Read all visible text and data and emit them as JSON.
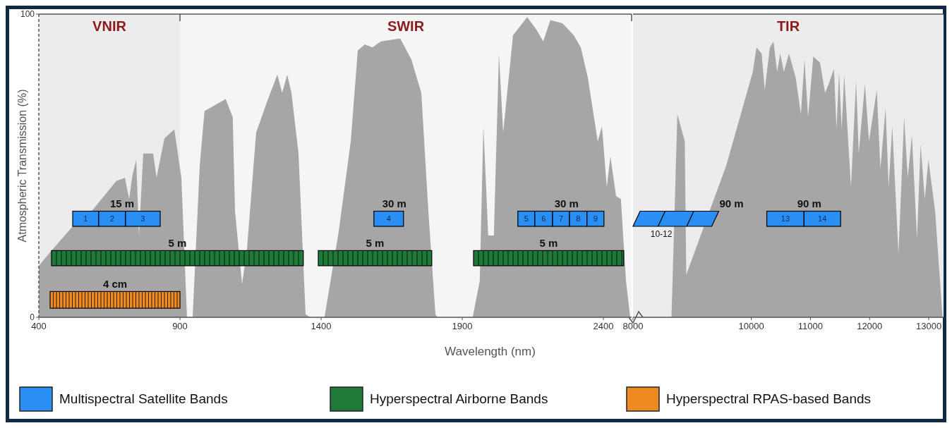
{
  "chart_data": [
    {
      "type": "area",
      "ylabel": "Atmospheric Transmission (%)",
      "xlabel": "Wavelength (nm)",
      "legend": "bottom",
      "x": [
        400,
        445,
        520,
        587,
        675,
        705,
        720,
        732,
        745,
        755,
        770,
        805,
        817,
        845,
        880,
        905,
        925,
        945,
        970,
        987,
        1062,
        1087,
        1095,
        1120,
        1137,
        1170,
        1212,
        1245,
        1262,
        1280,
        1295,
        1320,
        1345,
        1362,
        1412,
        1445,
        1462,
        1505,
        1530,
        1555,
        1582,
        1612,
        1680,
        1720,
        1755,
        1780,
        1805,
        1812,
        1937,
        1962,
        1975,
        1992,
        2012,
        2030,
        2045,
        2080,
        2130,
        2162,
        2187,
        2212,
        2255,
        2295,
        2320,
        2345,
        2380,
        2395,
        2412,
        2425,
        2445,
        2462,
        2480,
        2495
      ],
      "series": [
        {
          "color": "#a6a6a6",
          "values": [
            17,
            22,
            30,
            35,
            45,
            46,
            39,
            47,
            52,
            27,
            54,
            54,
            46,
            59,
            62,
            46,
            0,
            0,
            50,
            68,
            72,
            66,
            35,
            11,
            22,
            61,
            72,
            80,
            74,
            80,
            74,
            54,
            1,
            0,
            0,
            null,
            28,
            58,
            88,
            90,
            89,
            91,
            92,
            85,
            74,
            35,
            1,
            0,
            0,
            12,
            63,
            27,
            27,
            87,
            61,
            93,
            99,
            95,
            91,
            98,
            97,
            93,
            89,
            79,
            58,
            63,
            43,
            53,
            40,
            39,
            12,
            0
          ]
        },
        {
          "name": "Multispectral Satellite Bands",
          "color": "#2a8ef2",
          "values": [
            null,
            null,
            null,
            null,
            null,
            null,
            null,
            null,
            null,
            null,
            null,
            null,
            null,
            null,
            null,
            null,
            null,
            null,
            null,
            null,
            null,
            null,
            null,
            null,
            null,
            null,
            null,
            null,
            null,
            null,
            null,
            null,
            null,
            null,
            null,
            null,
            null,
            null,
            null,
            null,
            null,
            null,
            null,
            null,
            null,
            null,
            null,
            null,
            null,
            null,
            null,
            null,
            null,
            null,
            null,
            null,
            null,
            null,
            null,
            null,
            null,
            null,
            null,
            null,
            null,
            null,
            null,
            null,
            null,
            null,
            null,
            null
          ]
        },
        {
          "name": "Hyperspectral Airborne Bands",
          "color": "#1f7a3a",
          "values": [
            null,
            null,
            null,
            null,
            null,
            null,
            null,
            null,
            null,
            null,
            null,
            null,
            null,
            null,
            null,
            null,
            null,
            null,
            null,
            null,
            null,
            null,
            null,
            null,
            null,
            null,
            null,
            null,
            null,
            null,
            null,
            null,
            null,
            null,
            null,
            null,
            null,
            null,
            null,
            null,
            null,
            null,
            null,
            null,
            null,
            null,
            null,
            null,
            null,
            null,
            null,
            null,
            null,
            null,
            null,
            null,
            null,
            null,
            null,
            null,
            null,
            null,
            null,
            null,
            null,
            null,
            null,
            null,
            null,
            null,
            null,
            null
          ]
        },
        {
          "name": "Hyperspectral RPAS-based Bands",
          "color": "#ee8a22",
          "values": [
            null,
            null,
            null,
            null,
            null,
            null,
            null,
            null,
            null,
            null,
            null,
            null,
            null,
            null,
            null,
            null,
            null,
            null,
            null,
            null,
            null,
            null,
            null,
            null,
            null,
            null,
            null,
            null,
            null,
            null,
            null,
            null,
            null,
            null,
            null,
            null,
            null,
            null,
            null,
            null,
            null,
            null,
            null,
            null,
            null,
            null,
            null,
            null,
            null,
            null,
            null,
            null,
            null,
            null,
            null,
            null,
            null,
            null,
            null,
            null,
            null,
            null,
            null,
            null,
            null,
            null,
            null,
            null,
            null,
            null,
            null,
            null
          ]
        }
      ],
      "xlim": [
        400,
        2500
      ],
      "ylim": [
        0,
        100
      ],
      "xticks": [
        400,
        900,
        1400,
        1900,
        2400
      ],
      "yticks": [
        0,
        100
      ],
      "bands": [
        {
          "axis": "x",
          "from": 400,
          "to": 900,
          "label": "VNIR",
          "color": "#ececec"
        },
        {
          "axis": "x",
          "from": 900,
          "to": 2500,
          "label": "SWIR",
          "color": "#f5f5f5"
        },
        {
          "axis": "x",
          "from": 520,
          "to": 612,
          "label": "1",
          "color": "#2a8ef2"
        },
        {
          "axis": "x",
          "from": 612,
          "to": 707,
          "label": "2",
          "color": "#2a8ef2"
        },
        {
          "axis": "x",
          "from": 707,
          "to": 830,
          "label": "3",
          "color": "#2a8ef2"
        },
        {
          "axis": "x",
          "from": 1587,
          "to": 1692,
          "label": "4",
          "color": "#2a8ef2"
        },
        {
          "axis": "x",
          "from": 2097,
          "to": 2157,
          "label": "5",
          "color": "#2a8ef2"
        },
        {
          "axis": "x",
          "from": 2157,
          "to": 2220,
          "label": "6",
          "color": "#2a8ef2"
        },
        {
          "axis": "x",
          "from": 2220,
          "to": 2280,
          "label": "7",
          "color": "#2a8ef2"
        },
        {
          "axis": "x",
          "from": 2280,
          "to": 2342,
          "label": "8",
          "color": "#2a8ef2"
        },
        {
          "axis": "x",
          "from": 2342,
          "to": 2402,
          "label": "9",
          "color": "#2a8ef2"
        },
        {
          "axis": "x",
          "from": 445,
          "to": 1337,
          "label": "5 m",
          "color": "#1f7a3a"
        },
        {
          "axis": "x",
          "from": 1390,
          "to": 1792,
          "label": "5 m",
          "color": "#1f7a3a"
        },
        {
          "axis": "x",
          "from": 1940,
          "to": 2472,
          "label": "5 m",
          "color": "#1f7a3a"
        },
        {
          "axis": "x",
          "from": 440,
          "to": 900,
          "label": "4 cm",
          "color": "#ee8a22"
        }
      ],
      "annotations": [
        "15 m",
        "30 m",
        "30 m"
      ]
    },
    {
      "type": "area",
      "tick_labels": "x",
      "x": [
        8000,
        8650,
        8750,
        8875,
        8900,
        9575,
        10026,
        10087,
        10175,
        10227,
        10314,
        10375,
        10437,
        10489,
        10550,
        10637,
        10751,
        10838,
        10899,
        10960,
        11048,
        11161,
        11248,
        11310,
        11397,
        11441,
        11484,
        11528,
        11571,
        11685,
        11772,
        11816,
        11921,
        11990,
        12121,
        12183,
        12270,
        12322,
        12383,
        12488,
        12584,
        12645,
        12715,
        12802,
        12863,
        12933,
        12994,
        13108,
        13230
      ],
      "series": [
        {
          "color": "#a6a6a6",
          "values": [
            0,
            0,
            67,
            58,
            14,
            50,
            81,
            89,
            87,
            75,
            89,
            91,
            81,
            87,
            81,
            87,
            79,
            67,
            85,
            66,
            86,
            84,
            74,
            77,
            82,
            62,
            81,
            62,
            80,
            43,
            78,
            54,
            77,
            58,
            75,
            49,
            69,
            43,
            63,
            21,
            66,
            46,
            60,
            26,
            57,
            39,
            52,
            35,
            1
          ]
        }
      ],
      "xlim": [
        8000,
        13250
      ],
      "ylim": [
        0,
        100
      ],
      "xticks": [
        8000,
        10000,
        11000,
        12000,
        13000
      ],
      "bands": [
        {
          "axis": "x",
          "from": 8000,
          "to": 13250,
          "label": "TIR",
          "color": "#ececec"
        },
        {
          "axis": "x",
          "from": 8000,
          "to": 9450,
          "label": "10-12",
          "color": "#2a8ef2"
        },
        {
          "axis": "x",
          "from": 10262,
          "to": 10891,
          "label": "13",
          "color": "#2a8ef2"
        },
        {
          "axis": "x",
          "from": 10891,
          "to": 11510,
          "label": "14",
          "color": "#2a8ef2"
        }
      ],
      "annotations": [
        "90 m",
        "90 m"
      ]
    }
  ]
}
